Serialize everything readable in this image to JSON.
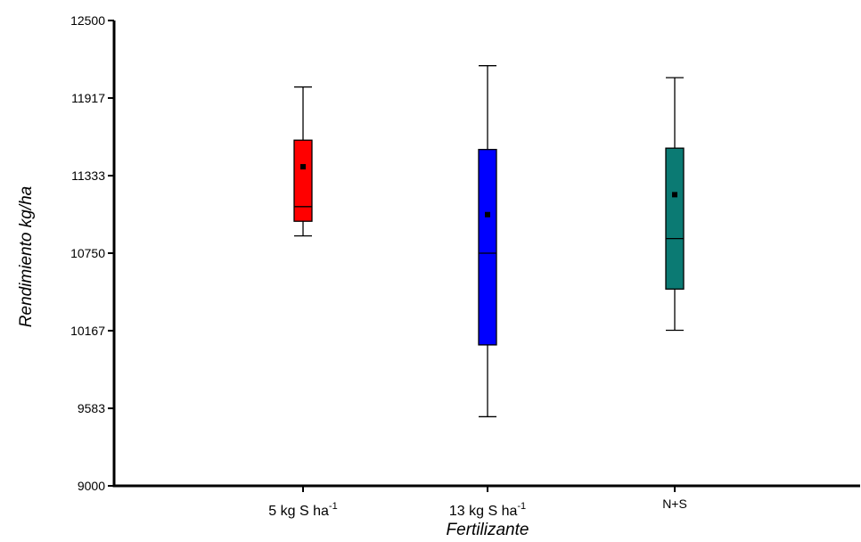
{
  "chart_data": {
    "type": "boxplot",
    "xlabel": "Fertilizante",
    "ylabel": "Rendimiento kg/ha",
    "ylim": [
      9000,
      12500
    ],
    "yticks": [
      "9000",
      "9583",
      "10167",
      "10750",
      "11333",
      "11917",
      "12500"
    ],
    "categories": [
      {
        "name": "5 kg S ha",
        "sup": "-1"
      },
      {
        "name": "13 kg S ha",
        "sup": "-1"
      },
      {
        "name": "N+S",
        "sup": ""
      }
    ],
    "boxes": [
      {
        "min": 10880,
        "q1": 10990,
        "median": 11100,
        "q3": 11600,
        "max": 12000,
        "mean": 11400,
        "color": "#ff0000"
      },
      {
        "min": 9520,
        "q1": 10060,
        "median": 10750,
        "q3": 11530,
        "max": 12160,
        "mean": 11040,
        "color": "#0000ff"
      },
      {
        "min": 10170,
        "q1": 10480,
        "median": 10860,
        "q3": 11540,
        "max": 12070,
        "mean": 11190,
        "color": "#0b7a73"
      }
    ],
    "grid": false,
    "legend": "none"
  }
}
